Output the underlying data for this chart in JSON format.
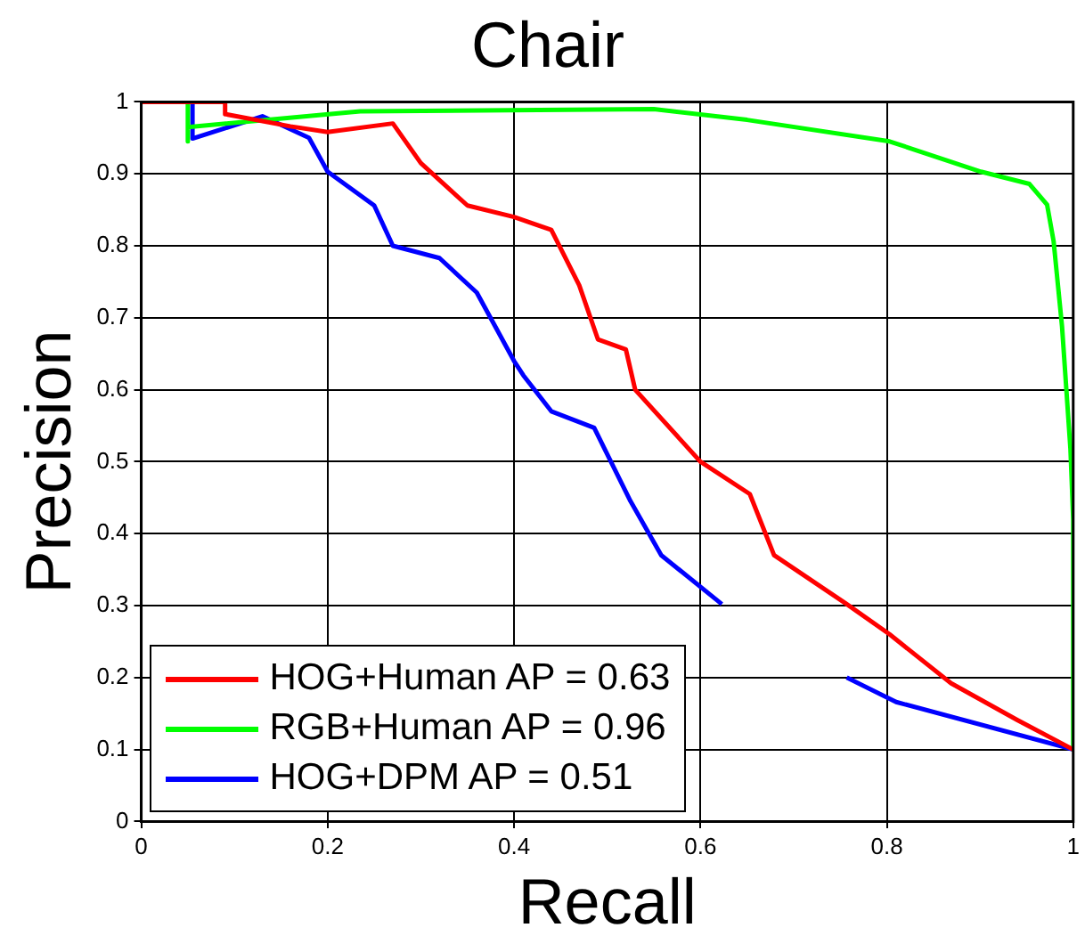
{
  "chart_data": {
    "type": "line",
    "title": "Chair",
    "xlabel": "Recall",
    "ylabel": "Precision",
    "xlim": [
      0,
      1
    ],
    "xticks": [
      0,
      0.2,
      0.4,
      0.6,
      0.8,
      1
    ],
    "ylim": [
      0,
      1
    ],
    "yticks": [
      0,
      0.1,
      0.2,
      0.3,
      0.4,
      0.5,
      0.6,
      0.7,
      0.8,
      0.9,
      1
    ],
    "grid": true,
    "legend": "bottom left",
    "marker": "none",
    "line_style": "solid",
    "series": [
      {
        "name": "HOG+Human AP = 0.63",
        "color": "#ff0000",
        "x": [
          0,
          0.09,
          0.09,
          0.16,
          0.2,
          0.27,
          0.3,
          0.35,
          0.4,
          0.44,
          0.47,
          0.49,
          0.52,
          0.53,
          0.6,
          0.653,
          0.679,
          0.757,
          0.803,
          0.869,
          0.94,
          1
        ],
        "values": [
          1,
          1,
          0.983,
          0.966,
          0.958,
          0.97,
          0.915,
          0.856,
          0.84,
          0.822,
          0.745,
          0.67,
          0.656,
          0.6,
          0.5,
          0.455,
          0.37,
          0.302,
          0.26,
          0.192,
          0.141,
          0.1
        ]
      },
      {
        "name": "RGB+Human AP = 0.96",
        "color": "#00ff00",
        "x": [
          0.05,
          0.05,
          0.05,
          0.235,
          0.55,
          0.65,
          0.803,
          0.901,
          0.953,
          0.972,
          0.979,
          0.988,
          0.997,
          1,
          1
        ],
        "values": [
          1,
          0.945,
          0.965,
          0.987,
          0.99,
          0.975,
          0.945,
          0.903,
          0.886,
          0.857,
          0.806,
          0.688,
          0.518,
          0.42,
          0.1
        ]
      },
      {
        "name": "HOG+DPM AP = 0.51",
        "color": "#0000ff",
        "x": [
          0,
          0.055,
          0.055,
          0.13,
          0.18,
          0.2,
          0.25,
          0.27,
          0.32,
          0.36,
          0.4,
          0.41,
          0.44,
          0.486,
          0.525,
          0.558,
          0.623,
          0.69,
          0.757,
          0.81,
          1
        ],
        "values": [
          1,
          1,
          0.949,
          0.98,
          0.95,
          0.903,
          0.856,
          0.8,
          0.783,
          0.735,
          0.64,
          0.62,
          0.57,
          0.547,
          0.445,
          0.37,
          0.302,
          null,
          0.2,
          0.166,
          0.1
        ]
      }
    ]
  }
}
